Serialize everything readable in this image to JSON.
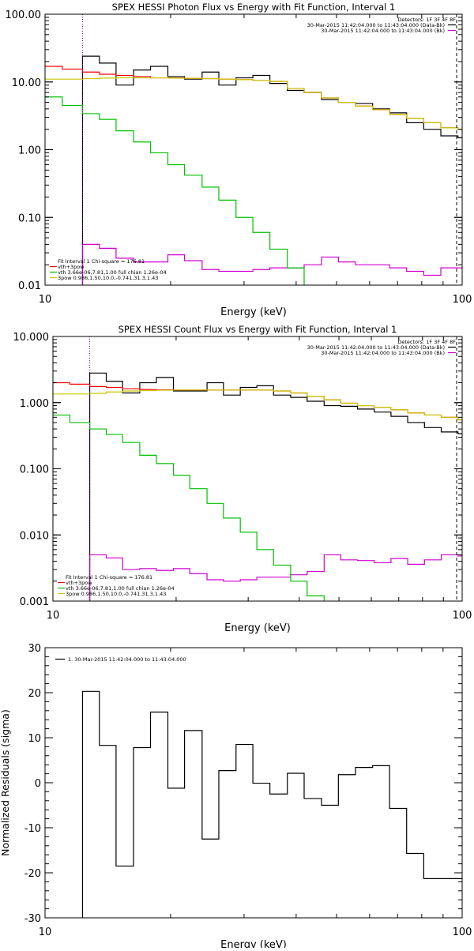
{
  "chart_data": [
    {
      "type": "line",
      "subtype": "step",
      "title": "SPEX HESSI Photon Flux vs Energy with Fit Function, Interval 1",
      "xlabel": "Energy (keV)",
      "ylabel": "",
      "xscale": "log",
      "yscale": "log",
      "xlim": [
        10,
        100
      ],
      "ylim": [
        0.01,
        100
      ],
      "x_ticks": [
        "10",
        "100"
      ],
      "y_ticks": [
        "0.01",
        "0.10",
        "1.00",
        "10.00",
        "100.00"
      ],
      "marker_x": 12.3,
      "edges": [
        10,
        11,
        12.3,
        13.5,
        14.8,
        16.3,
        17.9,
        19.7,
        21.6,
        23.8,
        26.1,
        28.7,
        31.5,
        34.6,
        38.1,
        41.8,
        46,
        50.5,
        55.5,
        61,
        67,
        73.6,
        80.9,
        88.9,
        97.7,
        100
      ],
      "legend_top_title": "Detectors: 1F 3F 4F 8F",
      "legend_top": [
        {
          "label": "30-Mar-2015 11:42:04.000 to 11:43:04.000 (Data-Bk)",
          "color": "#000000"
        },
        {
          "label": "30-Mar-2015 11:42:04.000 to 11:43:04.000 (Bk)",
          "color": "#d000d0"
        }
      ],
      "legend_bottom": [
        {
          "label": "Fit Interval  1    Chi-square = 176.81",
          "color": ""
        },
        {
          "label": "vth+3pow",
          "color": "#ff0000"
        },
        {
          "label": "vth 3.66e-06,7.81,1.00  full chian 1.26e-04",
          "color": "#00c000"
        },
        {
          "label": "3pow 0.986,1.50,10.0,-0.741,31.3,1.43",
          "color": "#c8c800"
        }
      ],
      "series": [
        {
          "name": "Data-Bk",
          "color": "#000000",
          "values": [
            null,
            null,
            24,
            19,
            9,
            15,
            17,
            12,
            11,
            14,
            9,
            11.5,
            12.5,
            9.5,
            7.5,
            7,
            5.5,
            5,
            4.8,
            4,
            3.5,
            2.5,
            2,
            1.6,
            1.5
          ]
        },
        {
          "name": "Bk",
          "color": "#d000d0",
          "values": [
            null,
            null,
            0.04,
            0.035,
            0.025,
            0.022,
            0.022,
            0.028,
            0.023,
            0.017,
            0.016,
            0.016,
            0.017,
            0.018,
            0.018,
            0.02,
            0.026,
            0.022,
            0.02,
            0.02,
            0.018,
            0.016,
            0.014,
            0.018,
            0.018
          ]
        },
        {
          "name": "vth+3pow",
          "color": "#ff0000",
          "values": [
            17,
            15.5,
            14,
            13,
            12.5,
            12,
            11.5,
            11.5,
            11.3,
            11.2,
            11,
            10.8,
            10.5,
            10.2,
            8,
            7,
            5.8,
            5,
            4.4,
            3.9,
            3.3,
            2.9,
            2.5,
            2.1,
            2
          ]
        },
        {
          "name": "vth",
          "color": "#00c000",
          "values": [
            6,
            4.5,
            3.4,
            2.8,
            1.9,
            1.3,
            0.9,
            0.6,
            0.42,
            0.28,
            0.18,
            0.1,
            0.06,
            0.034,
            0.018,
            0.008,
            null,
            null,
            null,
            null,
            null,
            null,
            null,
            null,
            null
          ]
        },
        {
          "name": "3pow",
          "color": "#c8c800",
          "values": [
            11,
            11,
            11.2,
            11.4,
            11.5,
            11.5,
            11.5,
            11.4,
            11.3,
            11.2,
            11,
            10.8,
            10.5,
            10.2,
            8,
            7,
            5.8,
            5,
            4.4,
            3.9,
            3.3,
            2.9,
            2.5,
            2.1,
            2
          ]
        }
      ]
    },
    {
      "type": "line",
      "subtype": "step",
      "title": "SPEX HESSI Count Flux vs Energy with Fit Function, Interval 1",
      "xlabel": "Energy (keV)",
      "ylabel": "",
      "xscale": "log",
      "yscale": "log",
      "xlim": [
        10,
        100
      ],
      "ylim": [
        0.001,
        10
      ],
      "x_ticks": [
        "10",
        "100"
      ],
      "y_ticks": [
        "0.001",
        "0.010",
        "0.100",
        "1.000",
        "10.000"
      ],
      "marker_x": 12.3,
      "edges": [
        10,
        11,
        12.3,
        13.5,
        14.8,
        16.3,
        17.9,
        19.7,
        21.6,
        23.8,
        26.1,
        28.7,
        31.5,
        34.6,
        38.1,
        41.8,
        46,
        50.5,
        55.5,
        61,
        67,
        73.6,
        80.9,
        88.9,
        97.7,
        100
      ],
      "legend_top_title": "Detectors: 1F 3F 4F 8F",
      "legend_top": [
        {
          "label": "30-Mar-2015 11:42:04.000 to 11:43:04.000 (Data-Bk)",
          "color": "#000000"
        },
        {
          "label": "30-Mar-2015 11:42:04.000 to 11:43:04.000 (Bk)",
          "color": "#d000d0"
        }
      ],
      "legend_bottom": [
        {
          "label": "Fit Interval  1    Chi-square = 176.81",
          "color": ""
        },
        {
          "label": "vth+3pow",
          "color": "#ff0000"
        },
        {
          "label": "vth 3.66e-06,7.81,1.00  full chian 1.26e-04",
          "color": "#00c000"
        },
        {
          "label": "3pow 0.986,1.50,10.0,-0.741,31.3,1.43",
          "color": "#c8c800"
        }
      ],
      "series": [
        {
          "name": "Data-Bk",
          "color": "#000000",
          "values": [
            null,
            null,
            2.8,
            2.1,
            1.4,
            2,
            2.4,
            1.5,
            1.5,
            2,
            1.3,
            1.7,
            1.8,
            1.3,
            1.2,
            1.05,
            0.9,
            0.88,
            0.8,
            0.72,
            0.62,
            0.5,
            0.42,
            0.36,
            0.34
          ]
        },
        {
          "name": "Bk",
          "color": "#d000d0",
          "values": [
            null,
            null,
            0.005,
            0.0045,
            0.003,
            0.0031,
            0.0029,
            0.0031,
            0.0026,
            0.0021,
            0.002,
            0.0021,
            0.0023,
            0.0023,
            0.0025,
            0.0028,
            0.005,
            0.0042,
            0.0041,
            0.0038,
            0.0044,
            0.0036,
            0.0042,
            0.005,
            0.0048
          ]
        },
        {
          "name": "vth+3pow",
          "color": "#ff0000",
          "values": [
            2,
            1.9,
            1.75,
            1.7,
            1.62,
            1.58,
            1.56,
            1.55,
            1.55,
            1.55,
            1.55,
            1.55,
            1.55,
            1.5,
            1.4,
            1.25,
            1.1,
            0.98,
            0.9,
            0.85,
            0.78,
            0.7,
            0.65,
            0.6,
            0.55
          ]
        },
        {
          "name": "vth",
          "color": "#00c000",
          "values": [
            0.65,
            0.5,
            0.4,
            0.33,
            0.25,
            0.16,
            0.12,
            0.08,
            0.05,
            0.03,
            0.018,
            0.011,
            0.006,
            0.0035,
            0.002,
            0.0012,
            0.0008,
            null,
            null,
            null,
            null,
            null,
            null,
            null,
            null
          ]
        },
        {
          "name": "3pow",
          "color": "#c8c800",
          "values": [
            1.35,
            1.35,
            1.38,
            1.45,
            1.5,
            1.52,
            1.54,
            1.55,
            1.55,
            1.55,
            1.55,
            1.55,
            1.55,
            1.5,
            1.4,
            1.25,
            1.1,
            0.98,
            0.9,
            0.85,
            0.78,
            0.7,
            0.65,
            0.6,
            0.55
          ]
        }
      ]
    },
    {
      "type": "line",
      "subtype": "step",
      "title": "",
      "xlabel": "Energy (keV)",
      "ylabel": "Normalized Residuals (sigma)",
      "xscale": "log",
      "yscale": "linear",
      "xlim": [
        10,
        100
      ],
      "ylim": [
        -30,
        30
      ],
      "x_ticks": [
        "10",
        "100"
      ],
      "y_ticks": [
        "-30",
        "-20",
        "-10",
        "0",
        "10",
        "20",
        "30"
      ],
      "edges": [
        12.3,
        13.5,
        14.8,
        16.3,
        17.9,
        19.7,
        21.6,
        23.8,
        26.1,
        28.7,
        31.5,
        34.6,
        38.1,
        41.8,
        46,
        50.5,
        55.5,
        61,
        67,
        73.6,
        80.9,
        88.9,
        97.7,
        100
      ],
      "legend_top_title": "",
      "legend_top": [
        {
          "label": "1. 30-Mar-2015 11:42:04.000 to 11:43:04.000",
          "color": "#000000"
        }
      ],
      "legend_bottom": [],
      "series": [
        {
          "name": "1. 30-Mar-2015 11:42:04.000 to 11:43:04.000",
          "color": "#000000",
          "values": [
            20.3,
            8.3,
            -18.5,
            7.8,
            15.7,
            -1.2,
            11.6,
            -12.5,
            2.7,
            8.5,
            -0.1,
            -2.5,
            2.1,
            -3.5,
            -5,
            1.8,
            3.4,
            3.8,
            -5.7,
            -15.7,
            -21.3,
            -21.3,
            -21.3
          ]
        }
      ]
    }
  ]
}
